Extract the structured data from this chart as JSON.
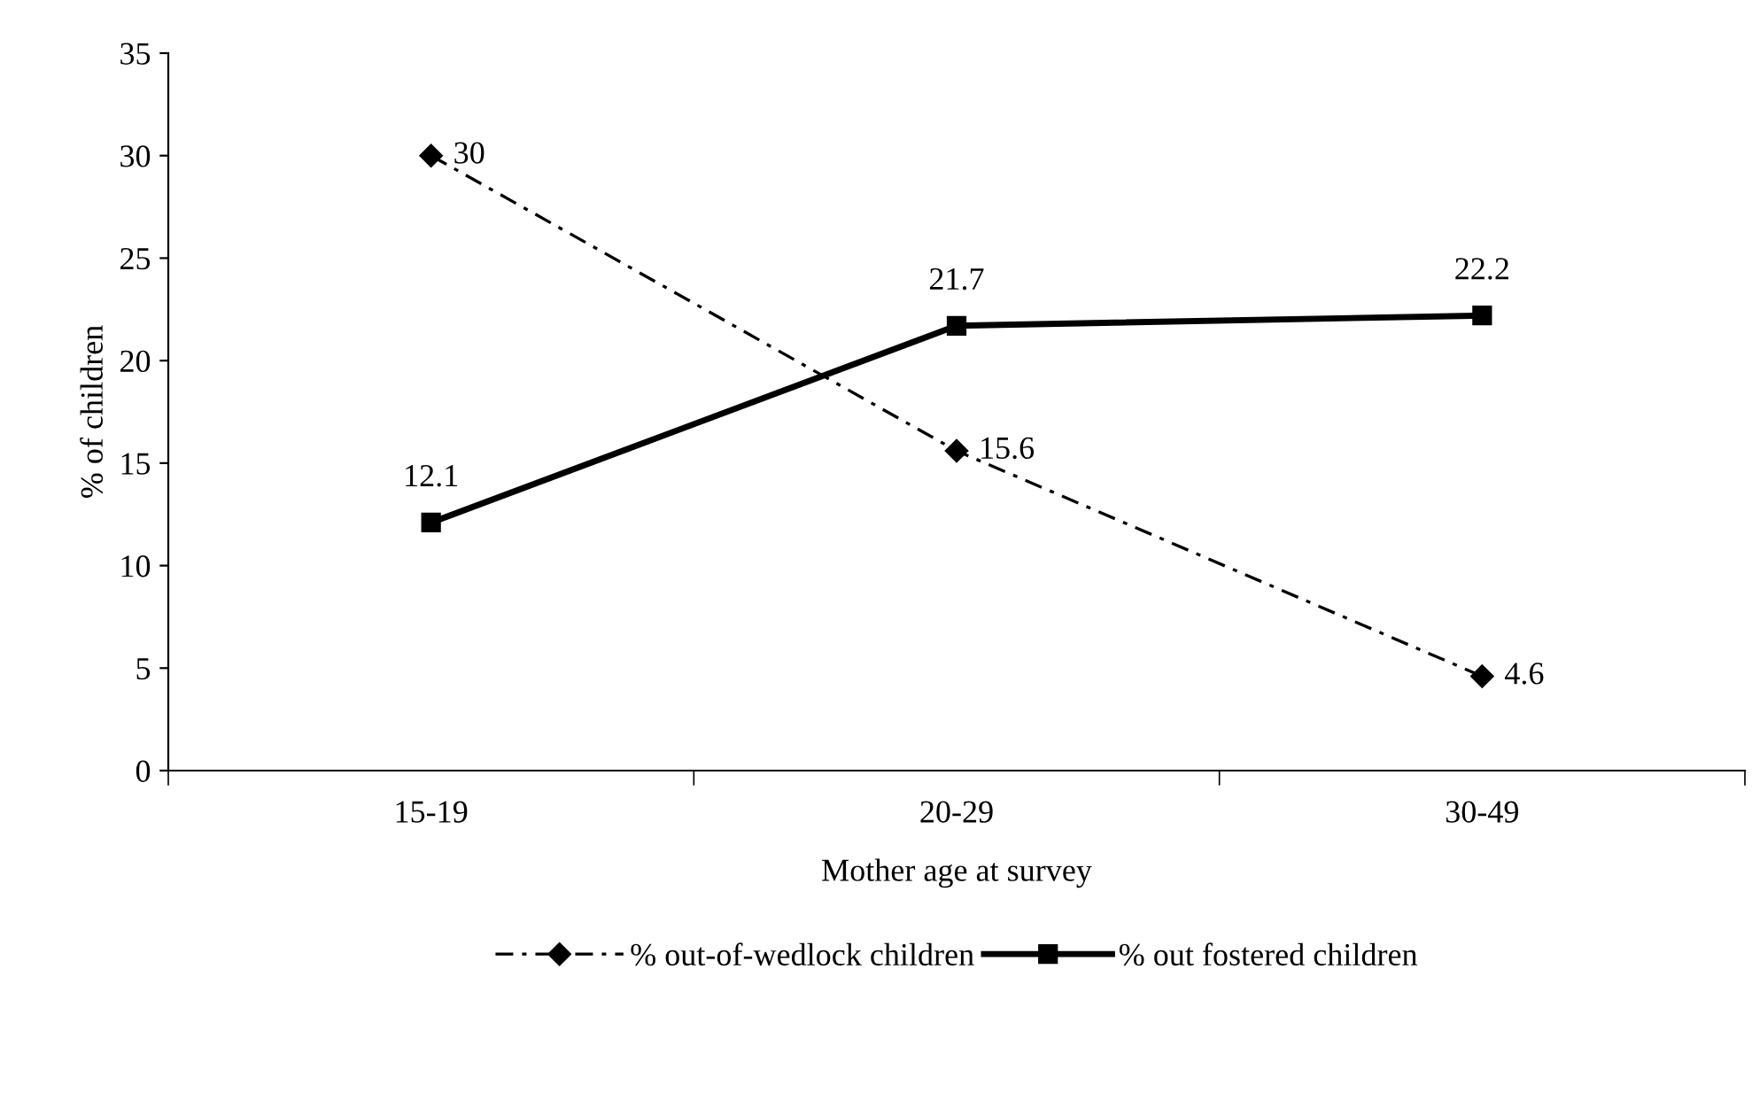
{
  "chart_data": {
    "type": "line",
    "xlabel": "Mother age at survey",
    "ylabel": "% of children",
    "categories": [
      "15-19",
      "20-29",
      "30-49"
    ],
    "series": [
      {
        "name": "% out-of-wedlock children",
        "color": "#000000",
        "values": [
          30,
          15.6,
          4.6
        ],
        "marker": "diamond",
        "line_style": "dashdot"
      },
      {
        "name": "% out fostered children",
        "color": "#000000",
        "values": [
          12.1,
          21.7,
          22.2
        ],
        "marker": "square",
        "line_style": "solid"
      }
    ],
    "ylim": [
      0,
      35
    ],
    "yticks": [
      0,
      5,
      10,
      15,
      20,
      25,
      30,
      35
    ],
    "grid": false,
    "legend": "bottom",
    "data_labels": true
  }
}
